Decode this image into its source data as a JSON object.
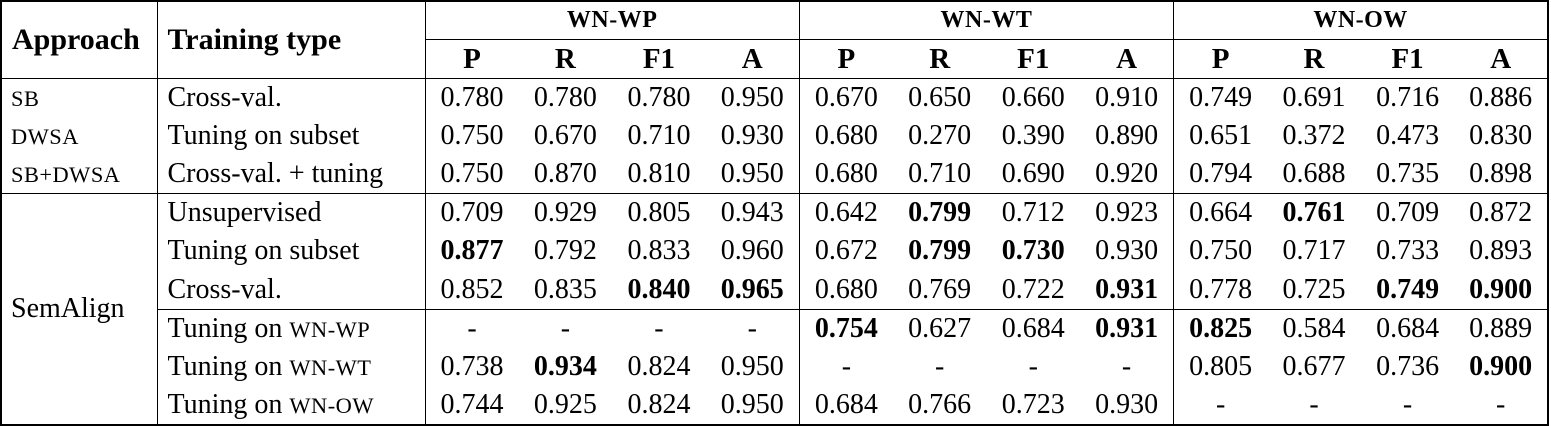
{
  "page": {
    "background_color": "#ffffff",
    "text_color": "#000000",
    "border_color": "#000000"
  },
  "table": {
    "headers": {
      "approach": "Approach",
      "training_type": "Training type"
    },
    "groups": [
      {
        "name": "WN-WP",
        "metrics": [
          "P",
          "R",
          "F1",
          "A"
        ]
      },
      {
        "name": "WN-WT",
        "metrics": [
          "P",
          "R",
          "F1",
          "A"
        ]
      },
      {
        "name": "WN-OW",
        "metrics": [
          "P",
          "R",
          "F1",
          "A"
        ]
      }
    ],
    "rows": [
      {
        "approach": "SB",
        "approach_smallcaps": true,
        "training_pre": "Cross-val.",
        "training_sc": "",
        "values": [
          "0.780",
          "0.780",
          "0.780",
          "0.950",
          "0.670",
          "0.650",
          "0.660",
          "0.910",
          "0.749",
          "0.691",
          "0.716",
          "0.886"
        ],
        "bold": [
          0,
          0,
          0,
          0,
          0,
          0,
          0,
          0,
          0,
          0,
          0,
          0
        ]
      },
      {
        "approach": "DWSA",
        "approach_smallcaps": true,
        "training_pre": "Tuning on subset",
        "training_sc": "",
        "values": [
          "0.750",
          "0.670",
          "0.710",
          "0.930",
          "0.680",
          "0.270",
          "0.390",
          "0.890",
          "0.651",
          "0.372",
          "0.473",
          "0.830"
        ],
        "bold": [
          0,
          0,
          0,
          0,
          0,
          0,
          0,
          0,
          0,
          0,
          0,
          0
        ]
      },
      {
        "approach": "SB+DWSA",
        "approach_smallcaps": true,
        "training_pre": "Cross-val. + tuning",
        "training_sc": "",
        "values": [
          "0.750",
          "0.870",
          "0.810",
          "0.950",
          "0.680",
          "0.710",
          "0.690",
          "0.920",
          "0.794",
          "0.688",
          "0.735",
          "0.898"
        ],
        "bold": [
          0,
          0,
          0,
          0,
          0,
          0,
          0,
          0,
          0,
          0,
          0,
          0
        ]
      },
      {
        "approach": "SemAlign",
        "approach_smallcaps": false,
        "approach_rowspan": 6,
        "separator_above": "full",
        "training_pre": "Unsupervised",
        "training_sc": "",
        "values": [
          "0.709",
          "0.929",
          "0.805",
          "0.943",
          "0.642",
          "0.799",
          "0.712",
          "0.923",
          "0.664",
          "0.761",
          "0.709",
          "0.872"
        ],
        "bold": [
          0,
          0,
          0,
          0,
          0,
          1,
          0,
          0,
          0,
          1,
          0,
          0
        ]
      },
      {
        "training_pre": "Tuning on subset",
        "training_sc": "",
        "values": [
          "0.877",
          "0.792",
          "0.833",
          "0.960",
          "0.672",
          "0.799",
          "0.730",
          "0.930",
          "0.750",
          "0.717",
          "0.733",
          "0.893"
        ],
        "bold": [
          1,
          0,
          0,
          0,
          0,
          1,
          1,
          0,
          0,
          0,
          0,
          0
        ]
      },
      {
        "training_pre": "Cross-val.",
        "training_sc": "",
        "values": [
          "0.852",
          "0.835",
          "0.840",
          "0.965",
          "0.680",
          "0.769",
          "0.722",
          "0.931",
          "0.778",
          "0.725",
          "0.749",
          "0.900"
        ],
        "bold": [
          0,
          0,
          1,
          1,
          0,
          0,
          0,
          1,
          0,
          0,
          1,
          1
        ]
      },
      {
        "separator_above": "partial",
        "training_pre": "Tuning on ",
        "training_sc": "WN-WP",
        "values": [
          "-",
          "-",
          "-",
          "-",
          "0.754",
          "0.627",
          "0.684",
          "0.931",
          "0.825",
          "0.584",
          "0.684",
          "0.889"
        ],
        "bold": [
          0,
          0,
          0,
          0,
          1,
          0,
          0,
          1,
          1,
          0,
          0,
          0
        ]
      },
      {
        "training_pre": "Tuning on ",
        "training_sc": "WN-WT",
        "values": [
          "0.738",
          "0.934",
          "0.824",
          "0.950",
          "-",
          "-",
          "-",
          "-",
          "0.805",
          "0.677",
          "0.736",
          "0.900"
        ],
        "bold": [
          0,
          1,
          0,
          0,
          0,
          0,
          0,
          0,
          0,
          0,
          0,
          1
        ]
      },
      {
        "training_pre": "Tuning on ",
        "training_sc": "WN-OW",
        "values": [
          "0.744",
          "0.925",
          "0.824",
          "0.950",
          "0.684",
          "0.766",
          "0.723",
          "0.930",
          "-",
          "-",
          "-",
          "-"
        ],
        "bold": [
          0,
          0,
          0,
          0,
          0,
          0,
          0,
          0,
          0,
          0,
          0,
          0
        ]
      }
    ]
  }
}
